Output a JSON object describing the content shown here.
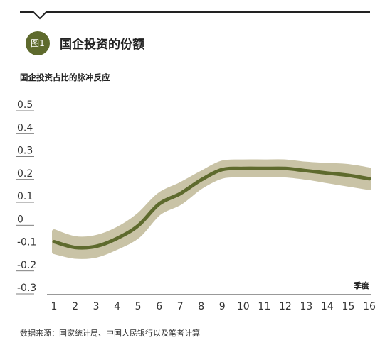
{
  "header": {
    "badge": "图1",
    "title": "国企投资的份额"
  },
  "source": "数据来源：国家统计局、中国人民银行以及笔者计算",
  "colors": {
    "accent": "#5e6a2d",
    "band": "#c9c3a6",
    "line": "#5e6a2d"
  },
  "chart_data": {
    "type": "line",
    "title": "",
    "ylabel": "国企投资占比的脉冲反应",
    "xlabel": "季度",
    "categories": [
      "1",
      "2",
      "3",
      "4",
      "5",
      "6",
      "7",
      "8",
      "9",
      "10",
      "11",
      "12",
      "13",
      "14",
      "15",
      "16"
    ],
    "x_tick_labels": [
      "1",
      "2",
      "3",
      "4",
      "5",
      "6",
      "7",
      "8",
      "9",
      "10",
      "11",
      "12",
      "13",
      "14",
      "15",
      "16"
    ],
    "y_tick_labels": [
      "0.5",
      "0.4",
      "0.3",
      "0.2",
      "0.1",
      "0",
      "-0.1",
      "-0.2",
      "-0.3"
    ],
    "ylim": [
      -0.3,
      0.5
    ],
    "grid": false,
    "series": [
      {
        "values": [
          -0.1,
          -0.125,
          -0.12,
          -0.085,
          -0.03,
          0.065,
          0.11,
          0.17,
          0.215,
          0.22,
          0.22,
          0.22,
          0.21,
          0.2,
          0.19,
          0.175
        ],
        "lower": [
          -0.145,
          -0.165,
          -0.16,
          -0.125,
          -0.075,
          0.025,
          0.07,
          0.14,
          0.185,
          0.19,
          0.19,
          0.19,
          0.18,
          0.165,
          0.15,
          0.135
        ],
        "upper": [
          -0.055,
          -0.085,
          -0.08,
          -0.045,
          0.015,
          0.105,
          0.15,
          0.2,
          0.245,
          0.25,
          0.25,
          0.25,
          0.24,
          0.235,
          0.23,
          0.215
        ]
      }
    ]
  }
}
